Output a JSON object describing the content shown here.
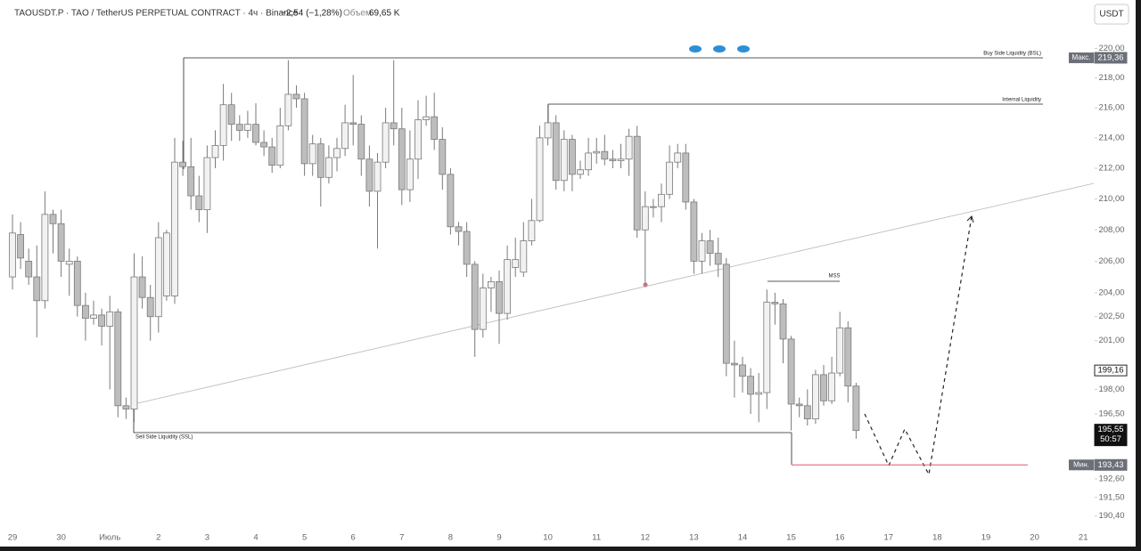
{
  "header": {
    "symbol": "TAOUSDT.P · TAO / TetherUS PERPETUAL CONTRACT · 4ч · Binance",
    "change": "−2,54 (−1,28%)",
    "volume_label": "Объем",
    "volume": "69,65 K",
    "currency_button": "USDT"
  },
  "chart_data": {
    "type": "candlestick",
    "log_scale": true,
    "ylim": [
      189.6,
      222.7
    ],
    "yticks": [
      {
        "value": 220,
        "label": "220,00"
      },
      {
        "value": 218,
        "label": "218,00"
      },
      {
        "value": 216,
        "label": "216,00"
      },
      {
        "value": 214,
        "label": "214,00"
      },
      {
        "value": 212,
        "label": "212,00"
      },
      {
        "value": 210,
        "label": "210,00"
      },
      {
        "value": 208,
        "label": "208,00"
      },
      {
        "value": 206,
        "label": "206,00"
      },
      {
        "value": 204,
        "label": "204,00"
      },
      {
        "value": 202.5,
        "label": "202,50"
      },
      {
        "value": 201,
        "label": "201,00"
      },
      {
        "value": 198,
        "label": "198,00"
      },
      {
        "value": 196.5,
        "label": "196,50"
      },
      {
        "value": 192.6,
        "label": "192,60"
      },
      {
        "value": 191.5,
        "label": "191,50"
      },
      {
        "value": 190.4,
        "label": "190,40"
      }
    ],
    "day_labels": [
      "29",
      "30",
      "Июль",
      "2",
      "3",
      "4",
      "5",
      "6",
      "7",
      "8",
      "9",
      "10",
      "11",
      "12",
      "13",
      "14",
      "15",
      "16",
      "17",
      "18",
      "19",
      "20",
      "21"
    ],
    "up_color": "#f2f2f2",
    "down_color": "#bdbdbd",
    "outline_color": "#7a7a7a",
    "open": [
      205.0,
      207.7,
      206.0,
      205.0,
      203.5,
      209.0,
      208.4,
      205.8,
      206.0,
      203.2,
      202.4,
      202.6,
      201.9,
      202.8,
      197.0,
      196.8,
      205.0,
      203.7,
      202.5,
      203.8,
      203.8,
      212.4,
      212.1,
      210.2,
      209.3,
      212.7,
      213.5,
      216.2,
      214.9,
      214.5,
      214.9,
      213.7,
      213.4,
      212.2,
      214.8,
      216.9,
      216.6,
      212.3,
      213.6,
      211.4,
      212.7,
      213.3,
      215.0,
      214.9,
      212.6,
      210.5,
      212.4,
      215.0,
      214.6,
      210.6,
      212.6,
      215.2,
      215.4,
      213.9,
      211.6,
      208.2,
      207.9,
      205.8,
      201.7,
      204.3,
      204.7,
      202.7,
      205.6,
      205.3,
      207.3,
      208.6,
      214.0,
      215.0,
      211.2,
      213.9,
      211.6,
      211.9,
      213.0,
      213.1,
      212.6,
      212.5,
      212.6,
      214.1,
      208.0,
      209.5,
      209.5,
      210.3,
      212.4,
      213.0,
      209.8,
      206.0,
      207.3,
      206.5,
      205.8,
      199.6,
      199.5,
      198.8,
      197.7,
      197.8,
      203.4,
      203.3,
      201.1,
      197.1,
      197.0,
      196.2,
      198.9,
      197.3,
      199.0,
      201.8,
      198.2
    ],
    "high": [
      209.0,
      208.5,
      206.8,
      207.0,
      210.5,
      209.3,
      209.3,
      206.8,
      206.3,
      204.0,
      203.5,
      203.0,
      203.8,
      203.0,
      197.5,
      206.5,
      206.3,
      204.5,
      208.5,
      208.0,
      214.0,
      213.8,
      214.0,
      211.5,
      213.5,
      214.5,
      217.6,
      217.0,
      215.5,
      215.8,
      216.3,
      214.5,
      214.0,
      216.0,
      219.2,
      217.5,
      217.0,
      214.2,
      214.0,
      213.5,
      214.0,
      216.2,
      218.2,
      215.5,
      213.5,
      213.0,
      216.0,
      219.2,
      216.0,
      214.5,
      216.5,
      216.8,
      217.0,
      214.7,
      212.0,
      208.5,
      208.5,
      206.0,
      205.2,
      205.0,
      205.4,
      207.0,
      207.5,
      208.5,
      210.0,
      214.8,
      216.2,
      215.5,
      214.5,
      214.2,
      212.5,
      214.0,
      214.0,
      214.2,
      213.2,
      213.6,
      214.6,
      214.8,
      210.5,
      210.0,
      211.0,
      213.5,
      213.6,
      213.6,
      210.0,
      207.8,
      208.0,
      207.5,
      206.2,
      201.0,
      200.0,
      199.3,
      199.0,
      204.2,
      204.0,
      203.6,
      201.3,
      197.5,
      198.0,
      199.2,
      199.5,
      200.0,
      202.8,
      202.2,
      198.4
    ],
    "low": [
      204.2,
      205.5,
      204.5,
      201.2,
      203.0,
      206.5,
      205.0,
      203.8,
      202.5,
      201.0,
      202.0,
      200.7,
      198.0,
      196.3,
      196.2,
      196.0,
      203.0,
      201.0,
      201.5,
      203.5,
      203.3,
      211.5,
      209.3,
      208.5,
      207.8,
      212.0,
      212.5,
      213.8,
      213.8,
      214.0,
      213.5,
      212.8,
      211.7,
      212.0,
      214.5,
      216.0,
      211.5,
      211.5,
      209.5,
      211.0,
      211.8,
      212.8,
      213.5,
      211.5,
      209.5,
      206.8,
      212.0,
      213.5,
      209.6,
      209.8,
      211.3,
      214.8,
      213.2,
      210.6,
      207.7,
      207.0,
      205.0,
      200.0,
      201.2,
      202.8,
      200.8,
      202.3,
      205.0,
      205.0,
      207.0,
      208.5,
      213.5,
      210.6,
      210.5,
      210.5,
      211.3,
      211.5,
      212.3,
      212.2,
      212.0,
      212.0,
      211.5,
      207.5,
      204.5,
      208.8,
      208.5,
      210.0,
      212.0,
      209.3,
      205.2,
      205.2,
      205.7,
      205.0,
      198.8,
      197.5,
      197.8,
      196.5,
      196.0,
      196.8,
      202.0,
      199.6,
      195.5,
      196.3,
      195.8,
      195.9,
      197.0,
      197.1,
      198.8,
      197.2,
      195.0
    ],
    "close": [
      207.8,
      206.2,
      205.0,
      203.5,
      209.0,
      208.4,
      206.0,
      206.0,
      203.2,
      202.4,
      202.6,
      201.9,
      202.8,
      197.0,
      196.8,
      205.0,
      203.7,
      202.5,
      207.5,
      207.8,
      212.4,
      212.1,
      210.2,
      209.3,
      212.7,
      213.5,
      216.2,
      214.9,
      214.5,
      214.9,
      213.7,
      213.4,
      212.2,
      214.8,
      216.9,
      216.6,
      212.3,
      213.6,
      211.4,
      212.7,
      213.3,
      215.0,
      214.9,
      212.6,
      210.5,
      212.4,
      215.0,
      214.6,
      210.6,
      212.6,
      215.2,
      215.4,
      213.9,
      211.6,
      208.2,
      207.9,
      205.8,
      201.7,
      204.3,
      204.7,
      202.7,
      206.1,
      206.1,
      207.3,
      208.6,
      214.0,
      215.0,
      211.2,
      213.9,
      211.6,
      211.9,
      213.0,
      213.1,
      212.6,
      212.5,
      212.6,
      214.1,
      208.0,
      209.5,
      209.5,
      210.3,
      212.4,
      213.0,
      209.8,
      206.0,
      207.3,
      206.5,
      205.8,
      199.6,
      199.5,
      198.8,
      197.7,
      197.8,
      203.4,
      203.3,
      201.1,
      197.1,
      197.0,
      196.2,
      198.9,
      197.3,
      199.0,
      201.8,
      198.2,
      195.5
    ],
    "price_labels": {
      "max": {
        "name": "Макс.",
        "value": 219.36,
        "label": "219,36"
      },
      "level": {
        "value": 199.16,
        "label": "199,16"
      },
      "last": {
        "value": 195.55,
        "label": "195,55",
        "countdown": "50:57"
      },
      "min": {
        "name": "Мин.",
        "value": 193.43,
        "label": "193,43",
        "color": "#e05a6a"
      }
    },
    "annotations": {
      "bsl": "Buy Side Liquidity (BSL)",
      "internal": "Internal Liquidity",
      "mss": "MSS",
      "ssl": "Sell Side Liquidity (SSL)"
    }
  }
}
